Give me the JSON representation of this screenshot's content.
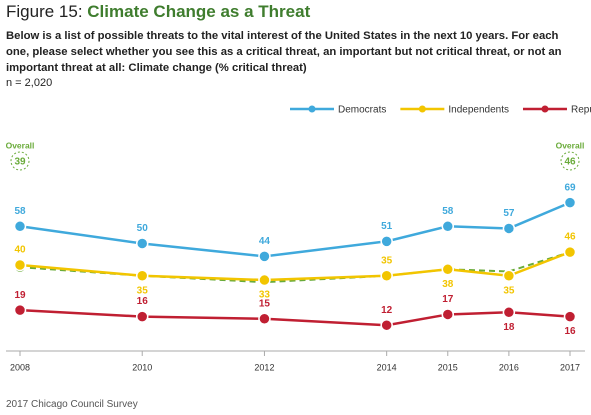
{
  "figure_label": "Figure 15:",
  "title": "Climate Change as a Threat",
  "subtitle": "Below is a list of possible threats to the vital interest of the United States in the next 10 years. For each one, please select whether you see this as a critical threat, an important but not critical threat, or not an important threat at all:",
  "subtitle_emphasis": "Climate change (% critical threat)",
  "sample_size": "n = 2,020",
  "source": "2017 Chicago Council Survey",
  "chart_data": {
    "type": "line",
    "x": [
      2008,
      2010,
      2012,
      2014,
      2015,
      2016,
      2017
    ],
    "xlim": [
      2008,
      2017
    ],
    "xticks": [
      2008,
      2010,
      2012,
      2014,
      2015,
      2016,
      2017
    ],
    "ylim": [
      0,
      80
    ],
    "legend": "top-right",
    "series": [
      {
        "name": "Democrats",
        "color": "#3fa9dc",
        "values": [
          58,
          50,
          44,
          51,
          58,
          57,
          69
        ]
      },
      {
        "name": "Independents",
        "color": "#f2c500",
        "values": [
          40,
          35,
          33,
          35,
          38,
          35,
          46
        ]
      },
      {
        "name": "Republicans",
        "color": "#c01f32",
        "values": [
          19,
          16,
          15,
          12,
          17,
          18,
          16
        ]
      }
    ],
    "overall": {
      "name": "Overall",
      "color": "#6aab3a",
      "dashed": true,
      "values": [
        39,
        35,
        32,
        35,
        38,
        37,
        46
      ],
      "value_labels": [
        "39",
        null,
        null,
        null,
        null,
        null,
        "46"
      ]
    }
  }
}
